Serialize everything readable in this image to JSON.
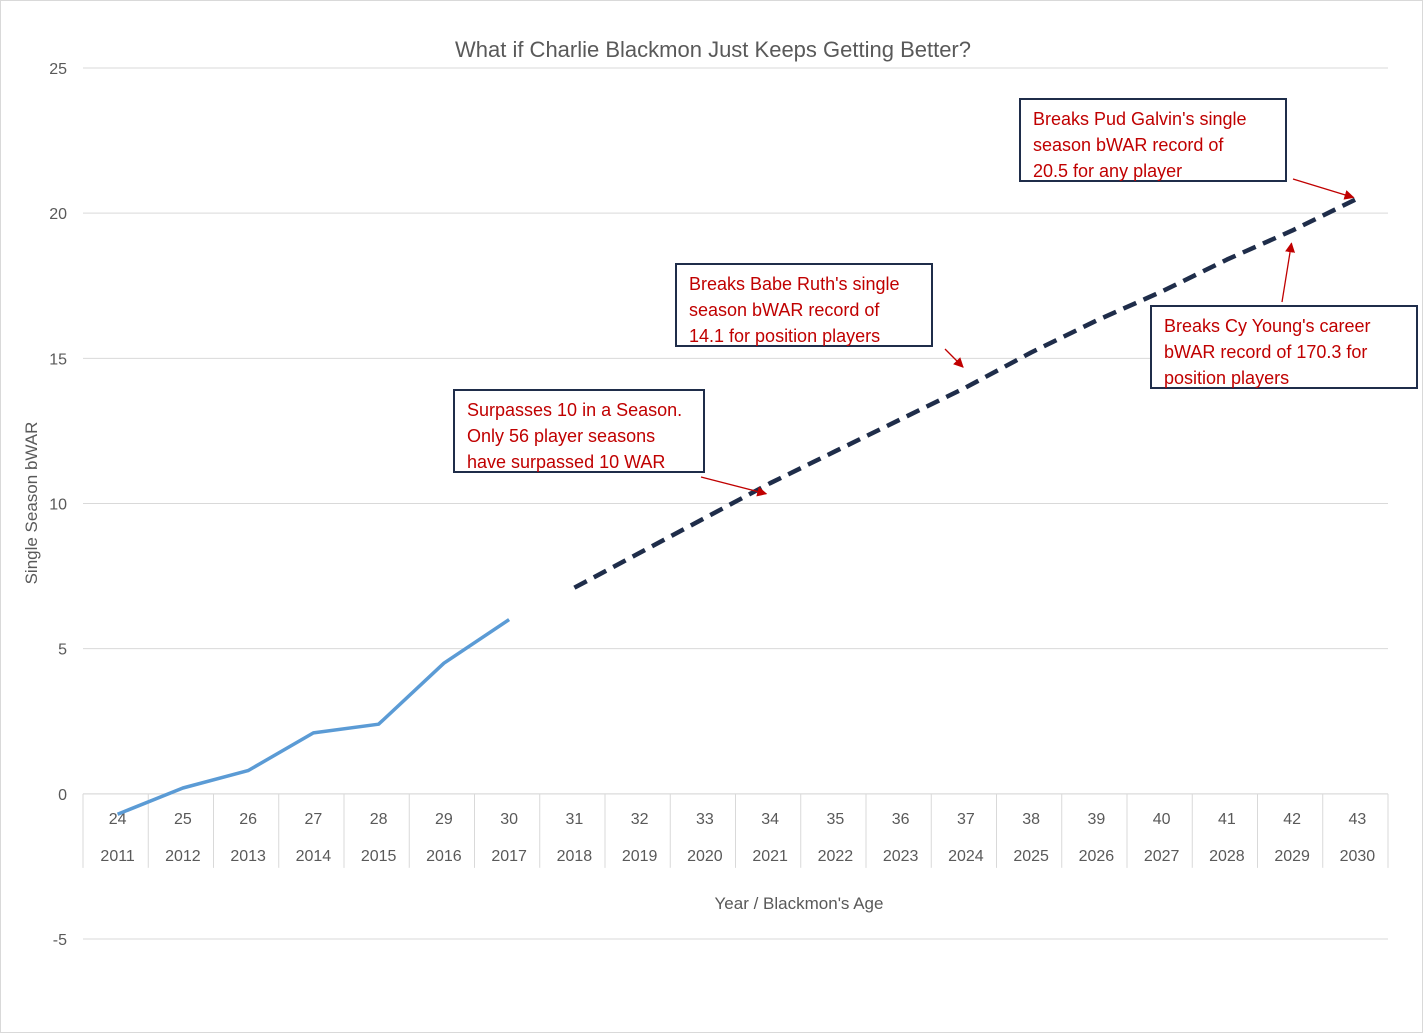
{
  "chart_data": {
    "type": "line",
    "title": "What if Charlie Blackmon Just Keeps Getting Better?",
    "xlabel": "Year / Blackmon's Age",
    "ylabel": "Single Season bWAR",
    "ylim": [
      -5,
      25
    ],
    "yticks": [
      -5,
      0,
      5,
      10,
      15,
      20,
      25
    ],
    "grid": true,
    "legend": "none",
    "categories": {
      "age": [
        "24",
        "25",
        "26",
        "27",
        "28",
        "29",
        "30",
        "31",
        "32",
        "33",
        "34",
        "35",
        "36",
        "37",
        "38",
        "39",
        "40",
        "41",
        "42",
        "43"
      ],
      "year": [
        "2011",
        "2012",
        "2013",
        "2014",
        "2015",
        "2016",
        "2017",
        "2018",
        "2019",
        "2020",
        "2021",
        "2022",
        "2023",
        "2024",
        "2025",
        "2026",
        "2027",
        "2028",
        "2029",
        "2030"
      ]
    },
    "series": [
      {
        "style": "solid",
        "color": "#5b9bd5",
        "values": [
          -0.7,
          0.2,
          0.8,
          2.1,
          2.4,
          4.5,
          6.0,
          null,
          null,
          null,
          null,
          null,
          null,
          null,
          null,
          null,
          null,
          null,
          null,
          null
        ]
      },
      {
        "style": "dashed",
        "color": "#1f2d4a",
        "values": [
          null,
          null,
          null,
          null,
          null,
          null,
          null,
          7.1,
          8.3,
          9.5,
          10.7,
          11.8,
          12.9,
          14.0,
          15.2,
          16.3,
          17.3,
          18.4,
          19.4,
          20.5
        ]
      }
    ],
    "annotations": [
      {
        "id": "galvin",
        "text": "Breaks Pud Galvin's single\nseason bWAR record of\n20.5 for any player",
        "color": "#c00000",
        "target": {
          "x_index": 19,
          "y": 20.5
        }
      },
      {
        "id": "ruth",
        "text": "Breaks Babe Ruth's single\nseason bWAR record of\n14.1 for position players",
        "color": "#c00000",
        "target": {
          "x_index": 13,
          "y": 14.6
        }
      },
      {
        "id": "young",
        "text": "Breaks Cy Young's career\nbWAR record of 170.3 for\nposition players",
        "color": "#c00000",
        "target": {
          "x_index": 18,
          "y": 19.1
        }
      },
      {
        "id": "ten",
        "text": "Surpasses 10 in a Season.\nOnly 56 player seasons\nhave surpassed 10 WAR",
        "color": "#c00000",
        "target": {
          "x_index": 10,
          "y": 10.3
        }
      }
    ]
  }
}
